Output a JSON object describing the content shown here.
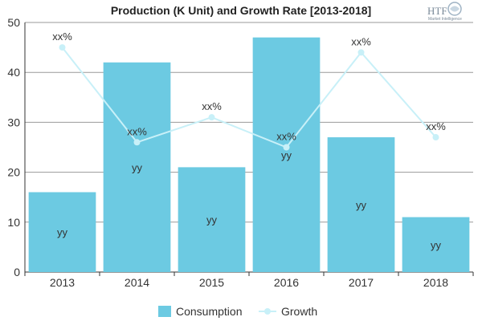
{
  "chart_data": {
    "type": "bar",
    "title": "Production (K Unit) and Growth Rate [2013-2018]",
    "categories": [
      "2013",
      "2014",
      "2015",
      "2016",
      "2017",
      "2018"
    ],
    "ylim": [
      0,
      50
    ],
    "yticks": [
      0,
      10,
      20,
      30,
      40,
      50
    ],
    "grid": true,
    "legend_position": "bottom",
    "series": [
      {
        "name": "Consumption",
        "type": "bar",
        "color": "#6ccae2",
        "values": [
          16,
          42,
          21,
          47,
          27,
          11
        ],
        "data_labels": [
          "yy",
          "yy",
          "yy",
          "yy",
          "yy",
          "yy"
        ]
      },
      {
        "name": "Growth",
        "type": "line",
        "color": "#c8f0f8",
        "values": [
          45,
          26,
          31,
          25,
          44,
          27
        ],
        "data_labels": [
          "xx%",
          "xx%",
          "xx%",
          "xx%",
          "xx%",
          "xx%"
        ]
      }
    ]
  },
  "logo": {
    "brand": "HTF",
    "tagline": "Market Intelligence"
  }
}
